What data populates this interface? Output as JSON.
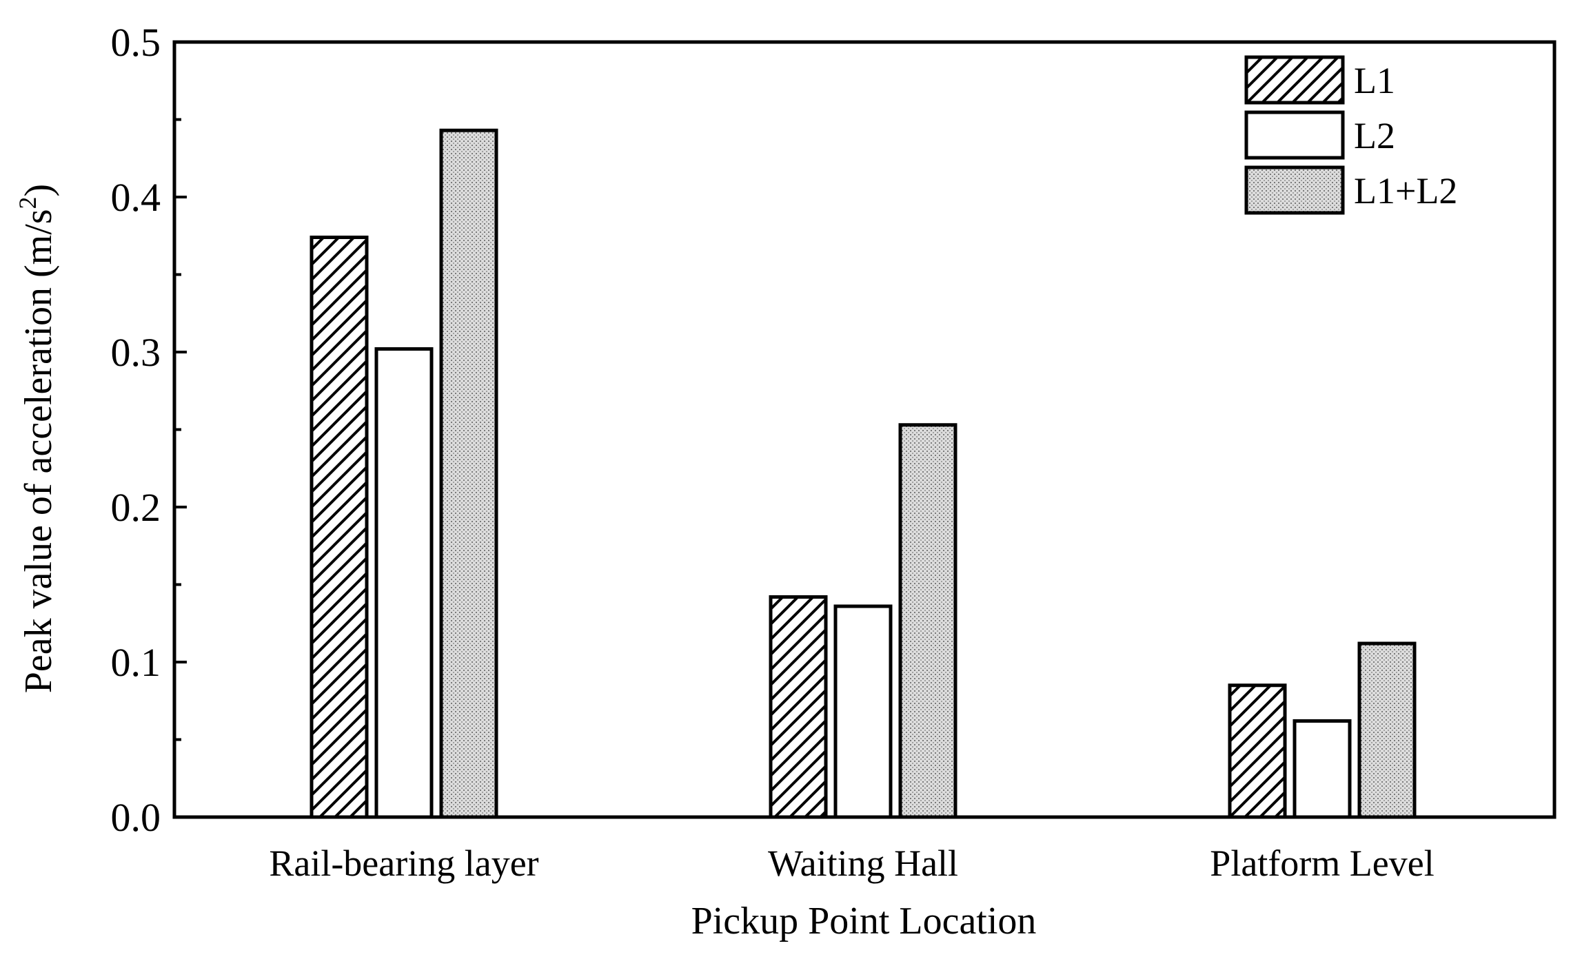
{
  "chart_data": {
    "type": "bar",
    "categories": [
      "Rail-bearing layer",
      "Waiting Hall",
      "Platform Level"
    ],
    "series": [
      {
        "name": "L1",
        "values": [
          0.374,
          0.142,
          0.085
        ],
        "fill": "hatch"
      },
      {
        "name": "L2",
        "values": [
          0.302,
          0.136,
          0.062
        ],
        "fill": "#ffffff"
      },
      {
        "name": "L1+L2",
        "values": [
          0.443,
          0.253,
          0.112
        ],
        "fill": "dots"
      }
    ],
    "xlabel": "Pickup Point Location",
    "ylabel_main": "Peak value of acceleration (m/s",
    "ylabel_sup": "2",
    "ylabel_end": ")",
    "ylim": [
      0,
      0.5
    ],
    "yticks": [
      "0.0",
      "0.1",
      "0.2",
      "0.3",
      "0.4",
      "0.5"
    ],
    "legend_position": "top-right",
    "grid": false
  }
}
